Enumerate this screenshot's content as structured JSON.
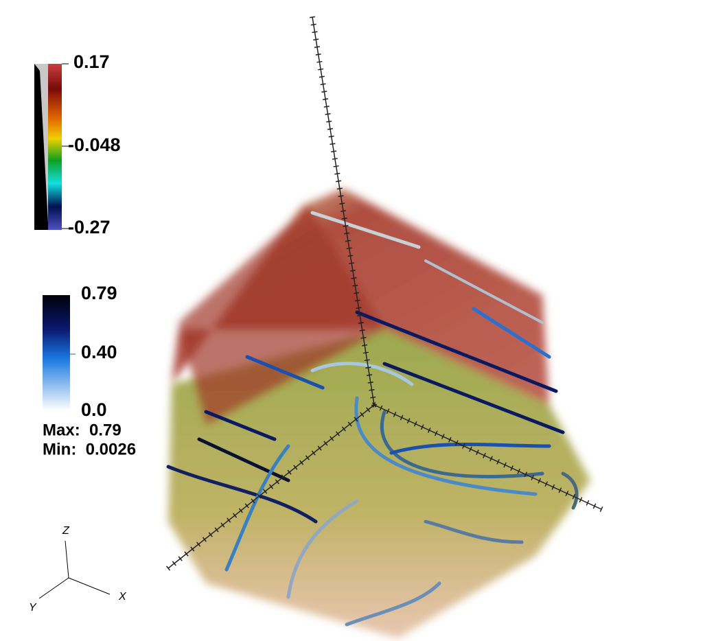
{
  "colorbars": [
    {
      "labels": [
        "0.17",
        "-0.048",
        "-0.27"
      ]
    },
    {
      "labels": [
        "0.79",
        "0.40",
        "0.0"
      ],
      "stats": [
        "Max:  0.79",
        "Min:  0.0026"
      ]
    }
  ],
  "axes_triad": {
    "z": "Z",
    "x": "X",
    "y": "Y"
  }
}
